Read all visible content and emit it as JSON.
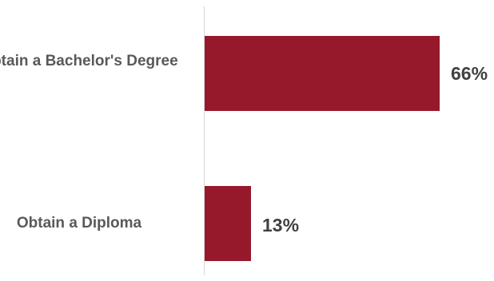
{
  "chart_data": {
    "type": "bar",
    "orientation": "horizontal",
    "title": "",
    "xlabel": "",
    "ylabel": "",
    "categories": [
      "Obtain a Bachelor's Degree",
      "Obtain a Diploma"
    ],
    "values": [
      66,
      13
    ],
    "value_labels": [
      "66%",
      "13%"
    ],
    "xlim": [
      0,
      66
    ],
    "grid": false,
    "legend": "none",
    "bar_color": "#96192b",
    "axis_color": "#d9d9d9"
  }
}
